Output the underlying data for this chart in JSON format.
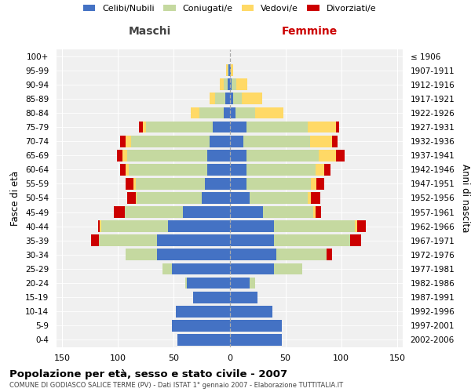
{
  "age_groups": [
    "100+",
    "95-99",
    "90-94",
    "85-89",
    "80-84",
    "75-79",
    "70-74",
    "65-69",
    "60-64",
    "55-59",
    "50-54",
    "45-49",
    "40-44",
    "35-39",
    "30-34",
    "25-29",
    "20-24",
    "15-19",
    "10-14",
    "5-9",
    "0-4"
  ],
  "birth_years": [
    "≤ 1906",
    "1907-1911",
    "1912-1916",
    "1917-1921",
    "1922-1926",
    "1927-1931",
    "1932-1936",
    "1937-1941",
    "1942-1946",
    "1947-1951",
    "1952-1956",
    "1957-1961",
    "1962-1966",
    "1967-1971",
    "1972-1976",
    "1977-1981",
    "1982-1986",
    "1987-1991",
    "1992-1996",
    "1997-2001",
    "2002-2006"
  ],
  "maschi_celibi": [
    0,
    1,
    2,
    4,
    5,
    15,
    18,
    20,
    20,
    22,
    25,
    42,
    55,
    65,
    65,
    52,
    38,
    33,
    48,
    52,
    47
  ],
  "maschi_coniugati": [
    0,
    1,
    3,
    9,
    22,
    60,
    70,
    72,
    70,
    62,
    58,
    52,
    60,
    52,
    28,
    8,
    2,
    0,
    0,
    0,
    0
  ],
  "maschi_vedovi": [
    0,
    1,
    4,
    5,
    8,
    3,
    5,
    4,
    3,
    2,
    1,
    0,
    1,
    0,
    0,
    0,
    0,
    0,
    0,
    0,
    0
  ],
  "maschi_divorziati": [
    0,
    0,
    0,
    0,
    0,
    3,
    5,
    5,
    5,
    7,
    8,
    10,
    2,
    7,
    0,
    0,
    0,
    0,
    0,
    0,
    0
  ],
  "femmine_nubili": [
    0,
    1,
    2,
    3,
    5,
    15,
    12,
    15,
    15,
    15,
    18,
    30,
    40,
    40,
    42,
    40,
    18,
    25,
    38,
    47,
    47
  ],
  "femmine_coniugate": [
    0,
    0,
    4,
    8,
    18,
    55,
    60,
    65,
    62,
    58,
    52,
    45,
    72,
    68,
    45,
    25,
    5,
    0,
    0,
    0,
    0
  ],
  "femmine_vedove": [
    0,
    2,
    10,
    18,
    25,
    25,
    20,
    15,
    8,
    5,
    3,
    2,
    2,
    0,
    0,
    0,
    0,
    0,
    0,
    0,
    0
  ],
  "femmine_divorziate": [
    0,
    0,
    0,
    0,
    0,
    3,
    5,
    8,
    5,
    7,
    8,
    5,
    8,
    10,
    5,
    0,
    0,
    0,
    0,
    0,
    0
  ],
  "color_celibi": "#4472c4",
  "color_coniugati": "#c5d9a0",
  "color_vedovi": "#ffd966",
  "color_divorziati": "#cc0000",
  "title": "Popolazione per età, sesso e stato civile - 2007",
  "subtitle": "COMUNE DI GODIASCO SALICE TERME (PV) - Dati ISTAT 1° gennaio 2007 - Elaborazione TUTTITALIA.IT",
  "label_maschi": "Maschi",
  "label_femmine": "Femmine",
  "ylabel_left": "Fasce di età",
  "ylabel_right": "Anni di nascita",
  "legend_labels": [
    "Celibi/Nubili",
    "Coniugati/e",
    "Vedovi/e",
    "Divorziati/e"
  ],
  "xlim": 155,
  "xticks": [
    -150,
    -100,
    -50,
    0,
    50,
    100,
    150
  ],
  "bg_plot": "#f0f0f0",
  "bg_fig": "#ffffff",
  "grid_color": "#ffffff"
}
